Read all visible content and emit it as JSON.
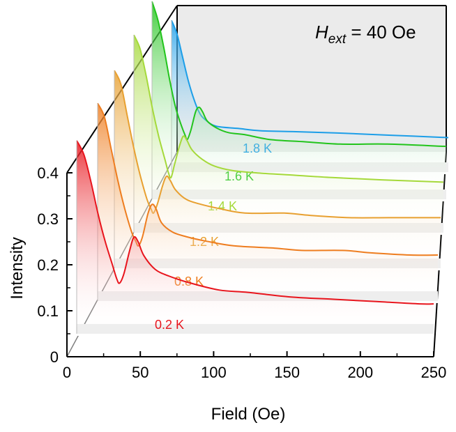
{
  "chart_data": {
    "type": "line",
    "style": "waterfall-3d",
    "xlabel": "Field (Oe)",
    "ylabel": "Intensity",
    "xlim": [
      0,
      250
    ],
    "ylim": [
      0,
      0.4
    ],
    "x_ticks": [
      "0",
      "50",
      "100",
      "150",
      "200",
      "250"
    ],
    "y_ticks": [
      "0",
      "0.1",
      "0.2",
      "0.3",
      "0.4"
    ],
    "annotation": {
      "main": "H",
      "sub": "ext",
      "rest": " = 40 Oe"
    },
    "series": [
      {
        "name": "0.2 K",
        "color": "#e8141c",
        "points": [
          [
            0,
            0.42
          ],
          [
            5,
            0.39
          ],
          [
            10,
            0.33
          ],
          [
            15,
            0.26
          ],
          [
            20,
            0.2
          ],
          [
            25,
            0.15
          ],
          [
            28,
            0.12
          ],
          [
            30,
            0.11
          ],
          [
            33,
            0.13
          ],
          [
            37,
            0.18
          ],
          [
            40,
            0.21
          ],
          [
            43,
            0.2
          ],
          [
            47,
            0.17
          ],
          [
            55,
            0.14
          ],
          [
            65,
            0.125
          ],
          [
            80,
            0.11
          ],
          [
            100,
            0.095
          ],
          [
            120,
            0.09
          ],
          [
            150,
            0.08
          ],
          [
            180,
            0.075
          ],
          [
            210,
            0.07
          ],
          [
            240,
            0.065
          ],
          [
            250,
            0.065
          ]
        ]
      },
      {
        "name": "0.8 K",
        "color": "#ee7d1f",
        "points": [
          [
            0,
            0.43
          ],
          [
            5,
            0.4
          ],
          [
            10,
            0.33
          ],
          [
            15,
            0.26
          ],
          [
            20,
            0.2
          ],
          [
            25,
            0.15
          ],
          [
            28,
            0.13
          ],
          [
            30,
            0.12
          ],
          [
            33,
            0.14
          ],
          [
            37,
            0.19
          ],
          [
            40,
            0.21
          ],
          [
            43,
            0.2
          ],
          [
            47,
            0.17
          ],
          [
            55,
            0.15
          ],
          [
            65,
            0.14
          ],
          [
            80,
            0.13
          ],
          [
            100,
            0.12
          ],
          [
            130,
            0.115
          ],
          [
            150,
            0.11
          ],
          [
            180,
            0.11
          ],
          [
            200,
            0.105
          ],
          [
            230,
            0.1
          ],
          [
            250,
            0.1
          ]
        ]
      },
      {
        "name": "1.2 K",
        "color": "#e8a030",
        "points": [
          [
            0,
            0.43
          ],
          [
            5,
            0.4
          ],
          [
            10,
            0.33
          ],
          [
            15,
            0.26
          ],
          [
            20,
            0.2
          ],
          [
            25,
            0.15
          ],
          [
            28,
            0.13
          ],
          [
            30,
            0.12
          ],
          [
            33,
            0.14
          ],
          [
            37,
            0.18
          ],
          [
            40,
            0.2
          ],
          [
            43,
            0.19
          ],
          [
            47,
            0.17
          ],
          [
            55,
            0.15
          ],
          [
            65,
            0.14
          ],
          [
            80,
            0.13
          ],
          [
            100,
            0.12
          ],
          [
            130,
            0.12
          ],
          [
            150,
            0.115
          ],
          [
            180,
            0.11
          ],
          [
            210,
            0.11
          ],
          [
            250,
            0.11
          ]
        ]
      },
      {
        "name": "1.4 K",
        "color": "#a5d93a",
        "points": [
          [
            0,
            0.43
          ],
          [
            5,
            0.4
          ],
          [
            10,
            0.34
          ],
          [
            15,
            0.27
          ],
          [
            20,
            0.21
          ],
          [
            25,
            0.16
          ],
          [
            28,
            0.13
          ],
          [
            30,
            0.12
          ],
          [
            33,
            0.15
          ],
          [
            37,
            0.19
          ],
          [
            40,
            0.21
          ],
          [
            43,
            0.2
          ],
          [
            47,
            0.18
          ],
          [
            55,
            0.16
          ],
          [
            65,
            0.145
          ],
          [
            80,
            0.135
          ],
          [
            100,
            0.13
          ],
          [
            130,
            0.125
          ],
          [
            160,
            0.12
          ],
          [
            200,
            0.115
          ],
          [
            250,
            0.11
          ]
        ]
      },
      {
        "name": "1.6 K",
        "color": "#22c41c",
        "points": [
          [
            0,
            0.43
          ],
          [
            5,
            0.39
          ],
          [
            10,
            0.33
          ],
          [
            15,
            0.26
          ],
          [
            20,
            0.2
          ],
          [
            25,
            0.16
          ],
          [
            28,
            0.14
          ],
          [
            30,
            0.13
          ],
          [
            33,
            0.15
          ],
          [
            37,
            0.19
          ],
          [
            40,
            0.2
          ],
          [
            43,
            0.19
          ],
          [
            47,
            0.17
          ],
          [
            55,
            0.155
          ],
          [
            65,
            0.145
          ],
          [
            80,
            0.14
          ],
          [
            100,
            0.13
          ],
          [
            130,
            0.125
          ],
          [
            160,
            0.12
          ],
          [
            200,
            0.12
          ],
          [
            250,
            0.115
          ]
        ]
      },
      {
        "name": "1.8 K",
        "color": "#1c9ee8",
        "points": [
          [
            0,
            0.33
          ],
          [
            5,
            0.3
          ],
          [
            10,
            0.25
          ],
          [
            15,
            0.2
          ],
          [
            20,
            0.16
          ],
          [
            25,
            0.13
          ],
          [
            30,
            0.115
          ],
          [
            40,
            0.1
          ],
          [
            60,
            0.095
          ],
          [
            80,
            0.09
          ],
          [
            110,
            0.088
          ],
          [
            150,
            0.085
          ],
          [
            200,
            0.08
          ],
          [
            250,
            0.075
          ]
        ]
      }
    ]
  }
}
